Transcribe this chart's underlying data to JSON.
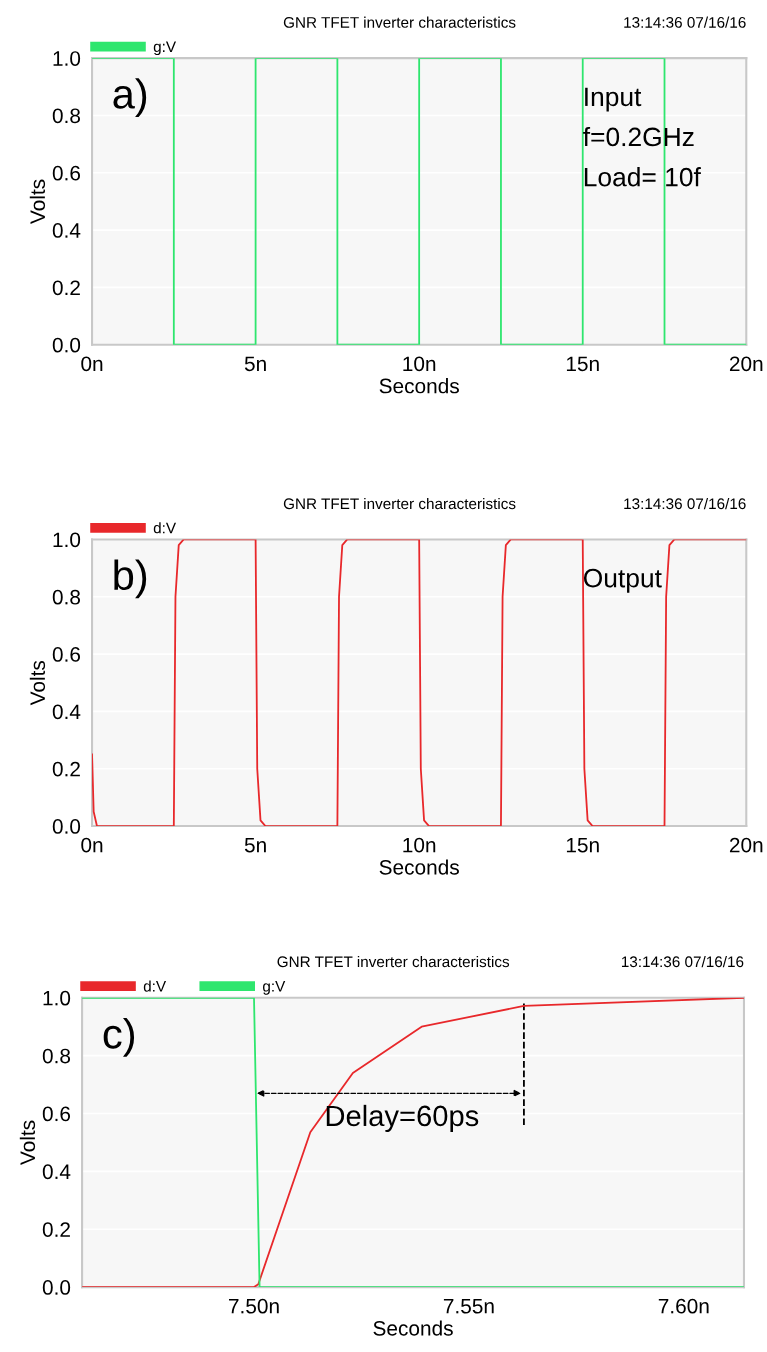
{
  "chart_data": [
    {
      "type": "line",
      "title": "GNR TFET inverter characteristics",
      "xlabel": "Seconds",
      "ylabel": "Volts",
      "annotations": [
        "13:14:36 07/16/16",
        "a)",
        "Input",
        "f=0.2GHz",
        "Load= 10f"
      ],
      "x": [
        0,
        2.5,
        2.5,
        5,
        5,
        7.5,
        7.5,
        10,
        10,
        12.5,
        12.5,
        15,
        15,
        17.5,
        17.5,
        20
      ],
      "series": [
        {
          "name": "g:V",
          "color": "#2ee66e",
          "values": [
            1,
            1,
            0,
            0,
            1,
            1,
            0,
            0,
            1,
            1,
            0,
            0,
            1,
            1,
            0,
            0
          ]
        }
      ],
      "xlim": [
        0,
        20
      ],
      "xticks": [
        {
          "value": 0,
          "label": "0n"
        },
        {
          "value": 5,
          "label": "5n"
        },
        {
          "value": 10,
          "label": "10n"
        },
        {
          "value": 15,
          "label": "15n"
        },
        {
          "value": 20,
          "label": "20n"
        }
      ],
      "ylim": [
        0,
        1
      ],
      "yticks": [
        {
          "value": 0,
          "label": "0.0"
        },
        {
          "value": 0.2,
          "label": "0.2"
        },
        {
          "value": 0.4,
          "label": "0.4"
        },
        {
          "value": 0.6,
          "label": "0.6"
        },
        {
          "value": 0.8,
          "label": "0.8"
        },
        {
          "value": 1,
          "label": "1.0"
        }
      ],
      "grid": "y",
      "legend": "top left"
    },
    {
      "type": "line",
      "title": "GNR TFET inverter characteristics",
      "xlabel": "Seconds",
      "ylabel": "Volts",
      "annotations": [
        "13:14:36 07/16/16",
        "b)",
        "Output"
      ],
      "x": [
        0,
        0.05,
        0.15,
        2.5,
        2.55,
        2.65,
        2.8,
        5,
        5.05,
        5.15,
        5.3,
        7.5,
        7.55,
        7.65,
        7.8,
        10,
        10.05,
        10.15,
        10.3,
        12.5,
        12.55,
        12.65,
        12.8,
        15,
        15.05,
        15.15,
        15.3,
        17.5,
        17.55,
        17.65,
        17.8,
        20
      ],
      "series": [
        {
          "name": "d:V",
          "color": "#e8282b",
          "values": [
            0.25,
            0.05,
            0,
            0,
            0.8,
            0.98,
            1,
            1,
            0.2,
            0.02,
            0,
            0,
            0.8,
            0.98,
            1,
            1,
            0.2,
            0.02,
            0,
            0,
            0.8,
            0.98,
            1,
            1,
            0.2,
            0.02,
            0,
            0,
            0.8,
            0.98,
            1,
            1
          ]
        }
      ],
      "xlim": [
        0,
        20
      ],
      "xticks": [
        {
          "value": 0,
          "label": "0n"
        },
        {
          "value": 5,
          "label": "5n"
        },
        {
          "value": 10,
          "label": "10n"
        },
        {
          "value": 15,
          "label": "15n"
        },
        {
          "value": 20,
          "label": "20n"
        }
      ],
      "ylim": [
        0,
        1
      ],
      "yticks": [
        {
          "value": 0,
          "label": "0.0"
        },
        {
          "value": 0.2,
          "label": "0.2"
        },
        {
          "value": 0.4,
          "label": "0.4"
        },
        {
          "value": 0.6,
          "label": "0.6"
        },
        {
          "value": 0.8,
          "label": "0.8"
        },
        {
          "value": 1,
          "label": "1.0"
        }
      ],
      "grid": "y",
      "legend": "top left"
    },
    {
      "type": "line",
      "title": "GNR TFET inverter characteristics",
      "xlabel": "Seconds",
      "ylabel": "Volts",
      "annotations": [
        "13:14:36 07/16/16",
        "c)",
        "Delay=60ps"
      ],
      "ref_lines": [
        {
          "axis": "x",
          "value": 7.5628,
          "line_style": "dashed",
          "color": "#000000"
        }
      ],
      "series": [
        {
          "name": "d:V",
          "color": "#e8282b",
          "x": [
            7.46,
            7.5,
            7.501,
            7.5131,
            7.523,
            7.539,
            7.5628,
            7.614
          ],
          "values": [
            0,
            0,
            0.01,
            0.535,
            0.74,
            0.9,
            0.972,
            1
          ]
        },
        {
          "name": "g:V",
          "color": "#2ee66e",
          "x": [
            7.46,
            7.5,
            7.5013,
            7.614
          ],
          "values": [
            1,
            1,
            0,
            0
          ]
        }
      ],
      "xlim": [
        7.46,
        7.614
      ],
      "xticks": [
        {
          "value": 7.5,
          "label": "7.50n"
        },
        {
          "value": 7.55,
          "label": "7.55n"
        },
        {
          "value": 7.6,
          "label": "7.60n"
        }
      ],
      "ylim": [
        0,
        1
      ],
      "yticks": [
        {
          "value": 0,
          "label": "0.0"
        },
        {
          "value": 0.2,
          "label": "0.2"
        },
        {
          "value": 0.4,
          "label": "0.4"
        },
        {
          "value": 0.6,
          "label": "0.6"
        },
        {
          "value": 0.8,
          "label": "0.8"
        },
        {
          "value": 1,
          "label": "1.0"
        }
      ],
      "grid": "y",
      "legend": "top left"
    }
  ]
}
